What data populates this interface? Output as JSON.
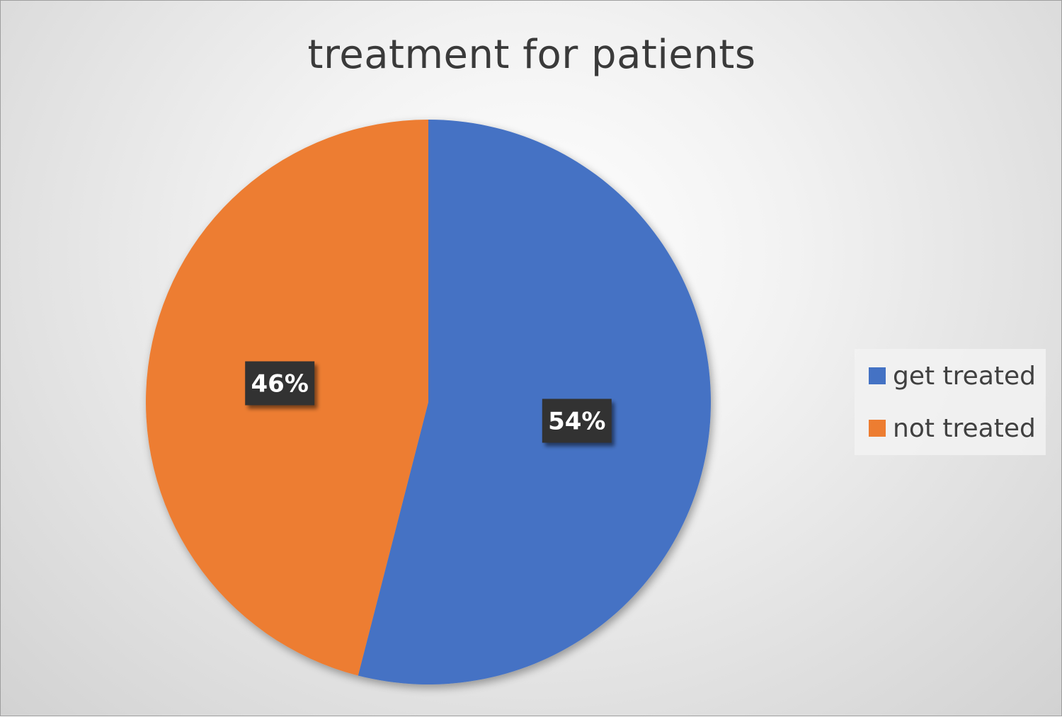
{
  "chart_data": {
    "type": "pie",
    "title": "treatment for patients",
    "categories": [
      "get treated",
      "not treated"
    ],
    "values": [
      54,
      46
    ],
    "data_labels": [
      "54%",
      "46%"
    ],
    "colors": [
      "#4472c4",
      "#ed7d31"
    ],
    "legend_position": "right",
    "legend": [
      {
        "label": "get treated",
        "color": "#4472c4"
      },
      {
        "label": "not treated",
        "color": "#ed7d31"
      }
    ]
  }
}
